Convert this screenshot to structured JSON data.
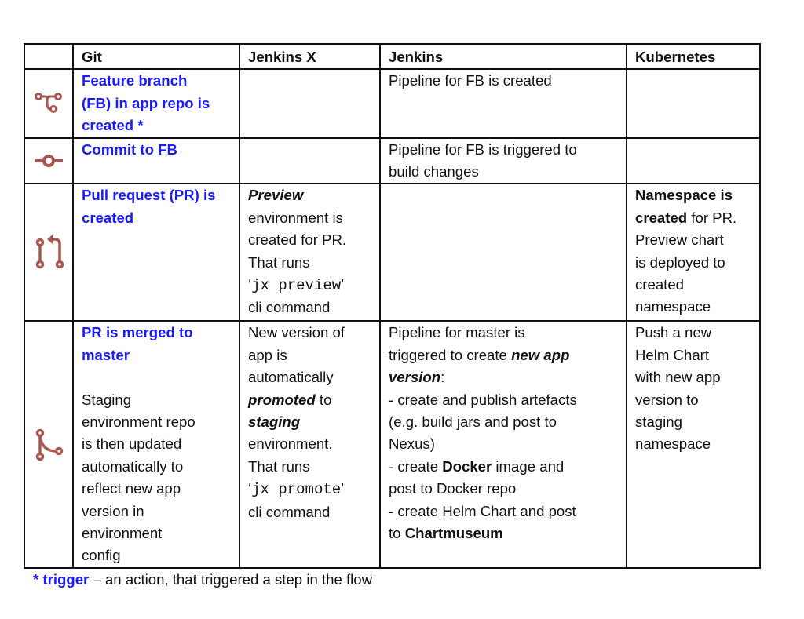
{
  "colors": {
    "trigger_blue": "#1a1aff",
    "icon": "#a8584e",
    "border": "#111111"
  },
  "headers": [
    "Git",
    "Jenkins X",
    "Jenkins",
    "Kubernetes"
  ],
  "rows": [
    {
      "icon": "git-branch-icon",
      "cells": [
        [
          [
            [
              "Feature branch",
              "blue"
            ]
          ],
          [
            [
              "(FB) in app repo is",
              "blue"
            ]
          ],
          [
            [
              "created *",
              "blue"
            ]
          ]
        ],
        [],
        [
          [
            [
              "Pipeline for FB is created",
              ""
            ]
          ]
        ],
        []
      ]
    },
    {
      "icon": "git-commit-icon",
      "cells": [
        [
          [
            [
              "Commit to FB",
              "blue"
            ]
          ]
        ],
        [],
        [
          [
            [
              "Pipeline for FB is triggered to",
              ""
            ]
          ],
          [
            [
              "build changes",
              ""
            ]
          ]
        ],
        []
      ]
    },
    {
      "icon": "git-pull-request-icon",
      "cells": [
        [
          [
            [
              "Pull request (PR) is",
              "blue"
            ]
          ],
          [
            [
              "created",
              "blue"
            ]
          ]
        ],
        [
          [
            [
              "Preview",
              "bi"
            ]
          ],
          [
            [
              "environment is",
              ""
            ]
          ],
          [
            [
              "created for PR.",
              ""
            ]
          ],
          [
            [
              "That runs",
              ""
            ]
          ],
          [
            [
              "‘",
              ""
            ],
            [
              "jx preview",
              "m"
            ],
            [
              "’",
              ""
            ]
          ],
          [
            [
              "cli command",
              ""
            ]
          ]
        ],
        [],
        [
          [
            [
              "Namespace is",
              "b"
            ]
          ],
          [
            [
              "created",
              "b"
            ],
            [
              " for PR.",
              ""
            ]
          ],
          [
            [
              "Preview chart",
              ""
            ]
          ],
          [
            [
              "is deployed to",
              ""
            ]
          ],
          [
            [
              "created",
              ""
            ]
          ],
          [
            [
              "namespace",
              ""
            ]
          ]
        ]
      ]
    },
    {
      "icon": "git-merge-icon",
      "cells": [
        [
          [
            [
              "PR is merged to",
              "blue"
            ]
          ],
          [
            [
              "master",
              "blue"
            ]
          ],
          [],
          [
            [
              "Staging",
              ""
            ]
          ],
          [
            [
              "environment repo",
              ""
            ]
          ],
          [
            [
              "is then updated",
              ""
            ]
          ],
          [
            [
              "automatically to",
              ""
            ]
          ],
          [
            [
              "reflect new app",
              ""
            ]
          ],
          [
            [
              "version in",
              ""
            ]
          ],
          [
            [
              "environment",
              ""
            ]
          ],
          [
            [
              "config",
              ""
            ]
          ]
        ],
        [
          [
            [
              "New version of",
              ""
            ]
          ],
          [
            [
              "app is",
              ""
            ]
          ],
          [
            [
              "automatically",
              ""
            ]
          ],
          [
            [
              "promoted",
              "bi"
            ],
            [
              " to",
              ""
            ]
          ],
          [
            [
              "staging",
              "bi"
            ]
          ],
          [
            [
              "environment.",
              ""
            ]
          ],
          [
            [
              "That runs",
              ""
            ]
          ],
          [
            [
              "‘",
              ""
            ],
            [
              "jx promote",
              "m"
            ],
            [
              "’",
              ""
            ]
          ],
          [
            [
              "cli command",
              ""
            ]
          ]
        ],
        [
          [
            [
              "Pipeline for master is",
              ""
            ]
          ],
          [
            [
              "triggered to create ",
              ""
            ],
            [
              "new app",
              "bi"
            ]
          ],
          [
            [
              "version",
              "bi"
            ],
            [
              ":",
              ""
            ]
          ],
          [
            [
              "- create and publish artefacts",
              ""
            ]
          ],
          [
            [
              "(e.g. build jars and post to",
              ""
            ]
          ],
          [
            [
              "Nexus)",
              ""
            ]
          ],
          [
            [
              "- create ",
              ""
            ],
            [
              "Docker",
              "b"
            ],
            [
              " image and",
              ""
            ]
          ],
          [
            [
              "post to Docker repo",
              ""
            ]
          ],
          [
            [
              "- create Helm Chart and post",
              ""
            ]
          ],
          [
            [
              "to ",
              ""
            ],
            [
              "Chartmuseum",
              "b"
            ]
          ]
        ],
        [
          [
            [
              "Push a new",
              ""
            ]
          ],
          [
            [
              "Helm Chart",
              ""
            ]
          ],
          [
            [
              "with new app",
              ""
            ]
          ],
          [
            [
              "version to",
              ""
            ]
          ],
          [
            [
              "staging",
              ""
            ]
          ],
          [
            [
              "namespace",
              ""
            ]
          ]
        ]
      ]
    }
  ],
  "footer": {
    "trigger": "* trigger",
    "text": " – an action, that triggered a step in the flow"
  }
}
